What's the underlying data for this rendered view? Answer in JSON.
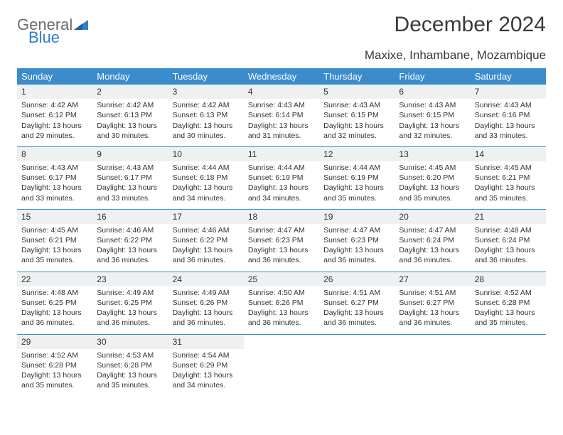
{
  "brand": {
    "part1": "General",
    "part2": "Blue",
    "color_gray": "#6b6b6b",
    "color_blue": "#2f7ecf"
  },
  "title": "December 2024",
  "location": "Maxixe, Inhambane, Mozambique",
  "header_bg": "#3b8ccc",
  "daynum_bg": "#eef0f1",
  "weekdays": [
    "Sunday",
    "Monday",
    "Tuesday",
    "Wednesday",
    "Thursday",
    "Friday",
    "Saturday"
  ],
  "days": [
    {
      "n": "1",
      "sunrise": "4:42 AM",
      "sunset": "6:12 PM",
      "dl": "13 hours and 29 minutes."
    },
    {
      "n": "2",
      "sunrise": "4:42 AM",
      "sunset": "6:13 PM",
      "dl": "13 hours and 30 minutes."
    },
    {
      "n": "3",
      "sunrise": "4:42 AM",
      "sunset": "6:13 PM",
      "dl": "13 hours and 30 minutes."
    },
    {
      "n": "4",
      "sunrise": "4:43 AM",
      "sunset": "6:14 PM",
      "dl": "13 hours and 31 minutes."
    },
    {
      "n": "5",
      "sunrise": "4:43 AM",
      "sunset": "6:15 PM",
      "dl": "13 hours and 32 minutes."
    },
    {
      "n": "6",
      "sunrise": "4:43 AM",
      "sunset": "6:15 PM",
      "dl": "13 hours and 32 minutes."
    },
    {
      "n": "7",
      "sunrise": "4:43 AM",
      "sunset": "6:16 PM",
      "dl": "13 hours and 33 minutes."
    },
    {
      "n": "8",
      "sunrise": "4:43 AM",
      "sunset": "6:17 PM",
      "dl": "13 hours and 33 minutes."
    },
    {
      "n": "9",
      "sunrise": "4:43 AM",
      "sunset": "6:17 PM",
      "dl": "13 hours and 33 minutes."
    },
    {
      "n": "10",
      "sunrise": "4:44 AM",
      "sunset": "6:18 PM",
      "dl": "13 hours and 34 minutes."
    },
    {
      "n": "11",
      "sunrise": "4:44 AM",
      "sunset": "6:19 PM",
      "dl": "13 hours and 34 minutes."
    },
    {
      "n": "12",
      "sunrise": "4:44 AM",
      "sunset": "6:19 PM",
      "dl": "13 hours and 35 minutes."
    },
    {
      "n": "13",
      "sunrise": "4:45 AM",
      "sunset": "6:20 PM",
      "dl": "13 hours and 35 minutes."
    },
    {
      "n": "14",
      "sunrise": "4:45 AM",
      "sunset": "6:21 PM",
      "dl": "13 hours and 35 minutes."
    },
    {
      "n": "15",
      "sunrise": "4:45 AM",
      "sunset": "6:21 PM",
      "dl": "13 hours and 35 minutes."
    },
    {
      "n": "16",
      "sunrise": "4:46 AM",
      "sunset": "6:22 PM",
      "dl": "13 hours and 36 minutes."
    },
    {
      "n": "17",
      "sunrise": "4:46 AM",
      "sunset": "6:22 PM",
      "dl": "13 hours and 36 minutes."
    },
    {
      "n": "18",
      "sunrise": "4:47 AM",
      "sunset": "6:23 PM",
      "dl": "13 hours and 36 minutes."
    },
    {
      "n": "19",
      "sunrise": "4:47 AM",
      "sunset": "6:23 PM",
      "dl": "13 hours and 36 minutes."
    },
    {
      "n": "20",
      "sunrise": "4:47 AM",
      "sunset": "6:24 PM",
      "dl": "13 hours and 36 minutes."
    },
    {
      "n": "21",
      "sunrise": "4:48 AM",
      "sunset": "6:24 PM",
      "dl": "13 hours and 36 minutes."
    },
    {
      "n": "22",
      "sunrise": "4:48 AM",
      "sunset": "6:25 PM",
      "dl": "13 hours and 36 minutes."
    },
    {
      "n": "23",
      "sunrise": "4:49 AM",
      "sunset": "6:25 PM",
      "dl": "13 hours and 36 minutes."
    },
    {
      "n": "24",
      "sunrise": "4:49 AM",
      "sunset": "6:26 PM",
      "dl": "13 hours and 36 minutes."
    },
    {
      "n": "25",
      "sunrise": "4:50 AM",
      "sunset": "6:26 PM",
      "dl": "13 hours and 36 minutes."
    },
    {
      "n": "26",
      "sunrise": "4:51 AM",
      "sunset": "6:27 PM",
      "dl": "13 hours and 36 minutes."
    },
    {
      "n": "27",
      "sunrise": "4:51 AM",
      "sunset": "6:27 PM",
      "dl": "13 hours and 36 minutes."
    },
    {
      "n": "28",
      "sunrise": "4:52 AM",
      "sunset": "6:28 PM",
      "dl": "13 hours and 35 minutes."
    },
    {
      "n": "29",
      "sunrise": "4:52 AM",
      "sunset": "6:28 PM",
      "dl": "13 hours and 35 minutes."
    },
    {
      "n": "30",
      "sunrise": "4:53 AM",
      "sunset": "6:28 PM",
      "dl": "13 hours and 35 minutes."
    },
    {
      "n": "31",
      "sunrise": "4:54 AM",
      "sunset": "6:29 PM",
      "dl": "13 hours and 34 minutes."
    }
  ],
  "labels": {
    "sunrise": "Sunrise: ",
    "sunset": "Sunset: ",
    "daylight": "Daylight: "
  }
}
